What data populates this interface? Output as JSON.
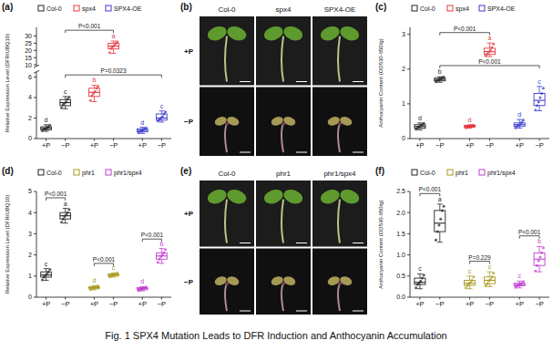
{
  "chart_data": [
    {
      "type": "box",
      "title": "(a)",
      "y_label": "Relative Expression Level (DFR/UBQ10)",
      "categories": [
        "+P",
        "−P",
        "+P",
        "−P",
        "+P",
        "−P"
      ],
      "ylim": [
        0,
        36
      ],
      "yticks": [
        0,
        2,
        4,
        6,
        10,
        15,
        20,
        25,
        30
      ],
      "axis_break": [
        6.5,
        9
      ],
      "legend": "top",
      "series": [
        {
          "name": "Col-0",
          "color": "#222222",
          "letters": [
            "d",
            "c"
          ],
          "boxes": [
            {
              "min": 0.7,
              "q1": 0.85,
              "median": 1.0,
              "q3": 1.15,
              "max": 1.35,
              "points": [
                0.75,
                0.9,
                0.95,
                1.05,
                1.15,
                1.3
              ]
            },
            {
              "min": 2.9,
              "q1": 3.2,
              "median": 3.5,
              "q3": 3.8,
              "max": 4.1,
              "points": [
                3.0,
                3.3,
                3.45,
                3.6,
                3.85,
                4.05
              ]
            }
          ]
        },
        {
          "name": "spx4",
          "color": "#e5373c",
          "letters": [
            "b",
            "a"
          ],
          "boxes": [
            {
              "min": 3.6,
              "q1": 4.1,
              "median": 4.5,
              "q3": 4.9,
              "max": 5.2,
              "points": [
                3.7,
                4.2,
                4.4,
                4.6,
                4.9,
                5.1
              ]
            },
            {
              "min": 18,
              "q1": 21,
              "median": 23,
              "q3": 25,
              "max": 26.5,
              "points": [
                18.5,
                21.5,
                22.5,
                23.5,
                25,
                26
              ]
            }
          ]
        },
        {
          "name": "SPX4-OE",
          "color": "#3a3ad0",
          "letters": [
            "d",
            "c"
          ],
          "boxes": [
            {
              "min": 0.5,
              "q1": 0.65,
              "median": 0.8,
              "q3": 0.95,
              "max": 1.1,
              "points": [
                0.55,
                0.7,
                0.78,
                0.85,
                0.95,
                1.05
              ]
            },
            {
              "min": 1.6,
              "q1": 1.8,
              "median": 2.0,
              "q3": 2.4,
              "max": 2.7,
              "points": [
                1.7,
                1.85,
                2.0,
                2.15,
                2.4,
                2.6
              ]
            }
          ]
        }
      ],
      "annotations": [
        {
          "text": "P<0.001",
          "from": 1,
          "to": 3,
          "y": 34
        },
        {
          "text": "P=0.0323",
          "from": 1,
          "to": 5,
          "y": 6.2
        }
      ]
    },
    {
      "type": "box",
      "title": "(c)",
      "y_label": "Anthocyanin Content (OD530-650/g)",
      "categories": [
        "+P",
        "−P",
        "+P",
        "−P",
        "+P",
        "−P"
      ],
      "ylim": [
        0,
        3.2
      ],
      "yticks": [
        0,
        1,
        2,
        3
      ],
      "legend": "top",
      "series": [
        {
          "name": "Col-0",
          "color": "#222222",
          "letters": [
            "d",
            "b"
          ],
          "boxes": [
            {
              "min": 0.25,
              "q1": 0.3,
              "median": 0.35,
              "q3": 0.4,
              "max": 0.45,
              "points": [
                0.27,
                0.31,
                0.34,
                0.37,
                0.4,
                0.44
              ]
            },
            {
              "min": 1.62,
              "q1": 1.66,
              "median": 1.7,
              "q3": 1.74,
              "max": 1.78,
              "points": [
                1.63,
                1.67,
                1.69,
                1.72,
                1.75,
                1.77
              ]
            }
          ]
        },
        {
          "name": "spx4",
          "color": "#e5373c",
          "letters": [
            "d",
            "a"
          ],
          "boxes": [
            {
              "min": 0.3,
              "q1": 0.33,
              "median": 0.35,
              "q3": 0.38,
              "max": 0.4,
              "points": [
                0.31,
                0.33,
                0.35,
                0.36,
                0.38,
                0.39
              ]
            },
            {
              "min": 2.36,
              "q1": 2.42,
              "median": 2.5,
              "q3": 2.6,
              "max": 2.75,
              "points": [
                2.38,
                2.44,
                2.49,
                2.55,
                2.62,
                2.72
              ]
            }
          ]
        },
        {
          "name": "SPX4-OE",
          "color": "#3a3ad0",
          "letters": [
            "d",
            "c"
          ],
          "boxes": [
            {
              "min": 0.3,
              "q1": 0.35,
              "median": 0.4,
              "q3": 0.45,
              "max": 0.55,
              "points": [
                0.31,
                0.36,
                0.39,
                0.42,
                0.47,
                0.53
              ]
            },
            {
              "min": 0.8,
              "q1": 0.95,
              "median": 1.1,
              "q3": 1.3,
              "max": 1.5,
              "points": [
                0.82,
                0.95,
                1.05,
                1.18,
                1.3,
                1.45
              ]
            }
          ]
        }
      ],
      "annotations": [
        {
          "text": "P<0.001",
          "from": 1,
          "to": 3,
          "y": 3.05
        },
        {
          "text": "P<0.001",
          "from": 1,
          "to": 5,
          "y": 2.1
        }
      ]
    },
    {
      "type": "box",
      "title": "(d)",
      "y_label": "Relative Expression Level (DFR/UBQ10)",
      "categories": [
        "+P",
        "−P",
        "+P",
        "−P",
        "+P",
        "−P"
      ],
      "ylim": [
        0,
        5
      ],
      "yticks": [
        0,
        1,
        2,
        3,
        4,
        5
      ],
      "legend": "top",
      "series": [
        {
          "name": "Col-0",
          "color": "#222222",
          "letters": [
            "c",
            "a"
          ],
          "boxes": [
            {
              "min": 0.8,
              "q1": 0.95,
              "median": 1.05,
              "q3": 1.2,
              "max": 1.35,
              "points": [
                0.82,
                0.95,
                1.02,
                1.1,
                1.2,
                1.32
              ]
            },
            {
              "min": 3.5,
              "q1": 3.7,
              "median": 3.85,
              "q3": 4.0,
              "max": 4.2,
              "points": [
                3.55,
                3.7,
                3.82,
                3.9,
                4.0,
                4.15
              ]
            }
          ]
        },
        {
          "name": "phr1",
          "color": "#a89a1c",
          "letters": [
            "d",
            "c"
          ],
          "boxes": [
            {
              "min": 0.35,
              "q1": 0.4,
              "median": 0.45,
              "q3": 0.5,
              "max": 0.55,
              "points": [
                0.36,
                0.41,
                0.44,
                0.47,
                0.5,
                0.54
              ]
            },
            {
              "min": 0.95,
              "q1": 1.0,
              "median": 1.05,
              "q3": 1.1,
              "max": 1.15,
              "points": [
                0.96,
                1.0,
                1.04,
                1.07,
                1.1,
                1.14
              ]
            }
          ]
        },
        {
          "name": "phr1/spx4",
          "color": "#c23ccf",
          "letters": [
            "d",
            "b"
          ],
          "boxes": [
            {
              "min": 0.3,
              "q1": 0.35,
              "median": 0.4,
              "q3": 0.45,
              "max": 0.5,
              "points": [
                0.31,
                0.35,
                0.39,
                0.42,
                0.45,
                0.49
              ]
            },
            {
              "min": 1.6,
              "q1": 1.8,
              "median": 1.95,
              "q3": 2.1,
              "max": 2.3,
              "points": [
                1.65,
                1.8,
                1.92,
                2.0,
                2.1,
                2.25
              ]
            }
          ]
        }
      ],
      "annotations": [
        {
          "text": "P<0.001",
          "from": 0,
          "to": 1,
          "y": 4.7
        },
        {
          "text": "P<0.001",
          "from": 2,
          "to": 3,
          "y": 1.6
        },
        {
          "text": "P<0.001",
          "from": 4,
          "to": 5,
          "y": 2.75
        }
      ]
    },
    {
      "type": "box",
      "title": "(f)",
      "y_label": "Anthocyanin Content (OD530-650/g)",
      "categories": [
        "+P",
        "−P",
        "+P",
        "−P",
        "+P",
        "−P"
      ],
      "ylim": [
        0,
        2.5
      ],
      "yticks": [
        {
          "value": 0,
          "label": "0.0"
        },
        0.5,
        {
          "value": 1,
          "label": "1.0"
        },
        1.5,
        {
          "value": 2,
          "label": "2.0"
        },
        2.5
      ],
      "legend": "top",
      "series": [
        {
          "name": "Col-0",
          "color": "#222222",
          "letters": [
            "c",
            "a"
          ],
          "boxes": [
            {
              "min": 0.2,
              "q1": 0.3,
              "median": 0.35,
              "q3": 0.45,
              "max": 0.55,
              "points": [
                0.22,
                0.3,
                0.34,
                0.38,
                0.45,
                0.52
              ]
            },
            {
              "min": 1.3,
              "q1": 1.55,
              "median": 1.75,
              "q3": 2.05,
              "max": 2.2,
              "points": [
                1.35,
                1.55,
                1.7,
                1.85,
                2.05,
                2.15
              ]
            }
          ]
        },
        {
          "name": "phr1",
          "color": "#a89a1c",
          "letters": [
            "c",
            "c"
          ],
          "boxes": [
            {
              "min": 0.2,
              "q1": 0.28,
              "median": 0.33,
              "q3": 0.4,
              "max": 0.5,
              "points": [
                0.22,
                0.28,
                0.32,
                0.35,
                0.4,
                0.48
              ]
            },
            {
              "min": 0.25,
              "q1": 0.32,
              "median": 0.4,
              "q3": 0.48,
              "max": 0.6,
              "points": [
                0.27,
                0.32,
                0.38,
                0.42,
                0.48,
                0.57
              ]
            }
          ]
        },
        {
          "name": "phr1/spx4",
          "color": "#c23ccf",
          "letters": [
            "c",
            "b"
          ],
          "boxes": [
            {
              "min": 0.22,
              "q1": 0.27,
              "median": 0.3,
              "q3": 0.33,
              "max": 0.38,
              "points": [
                0.23,
                0.27,
                0.29,
                0.31,
                0.33,
                0.37
              ]
            },
            {
              "min": 0.6,
              "q1": 0.75,
              "median": 0.9,
              "q3": 1.05,
              "max": 1.2,
              "points": [
                0.62,
                0.75,
                0.86,
                0.95,
                1.05,
                1.17
              ]
            }
          ]
        }
      ],
      "annotations": [
        {
          "text": "P<0.001",
          "from": 0,
          "to": 1,
          "y": 2.45
        },
        {
          "text": "P=0.229",
          "from": 2,
          "to": 3,
          "y": 0.85
        },
        {
          "text": "P<0.001",
          "from": 4,
          "to": 5,
          "y": 1.45
        }
      ]
    }
  ],
  "figure": {
    "caption": "Fig. 1 SPX4 Mutation Leads to DFR Induction and Anthocyanin Accumulation",
    "panels": [
      {
        "label": "(b)",
        "columns": [
          "Col-0",
          "spx4",
          "SPX4-OE"
        ],
        "rows": [
          "+P",
          "−P"
        ]
      },
      {
        "label": "(e)",
        "columns": [
          "Col-0",
          "phr1",
          "phr1/spx4"
        ],
        "rows": [
          "+P",
          "−P"
        ]
      }
    ]
  }
}
